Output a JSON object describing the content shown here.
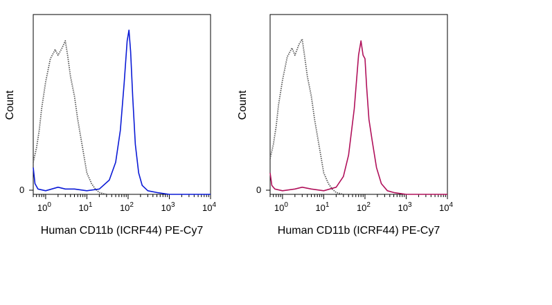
{
  "chart_data": [
    {
      "type": "line",
      "xscale": "log",
      "xlim": [
        0.5,
        10000
      ],
      "ylim": [
        0,
        100
      ],
      "xlabel": "Human CD11b (ICRF44) PE-Cy7",
      "ylabel": "Count",
      "y_tick_labels": [
        "0"
      ],
      "x_ticks": [
        {
          "value": 1,
          "base": "10",
          "exp": "0"
        },
        {
          "value": 10,
          "base": "10",
          "exp": "1"
        },
        {
          "value": 100,
          "base": "10",
          "exp": "2"
        },
        {
          "value": 1000,
          "base": "10",
          "exp": "3"
        },
        {
          "value": 10000,
          "base": "10",
          "exp": "4"
        }
      ],
      "grid": false,
      "series": [
        {
          "style": "dotted",
          "color": "#555555",
          "x": [
            0.5,
            0.6,
            0.7,
            0.8,
            1.0,
            1.3,
            1.7,
            2.0,
            2.5,
            3.0,
            3.4,
            4.0,
            5.0,
            6.0,
            8.0,
            10.0,
            13.0,
            16.0,
            20.0,
            30.0
          ],
          "y": [
            18,
            26,
            36,
            48,
            63,
            76,
            81,
            78,
            82,
            86,
            78,
            66,
            55,
            42,
            25,
            12,
            6,
            3,
            1,
            0
          ]
        },
        {
          "style": "solid",
          "color": "#0a1ad6",
          "x": [
            0.5,
            0.55,
            0.65,
            1.0,
            2.0,
            3.0,
            5.0,
            10.0,
            20.0,
            35.0,
            50.0,
            65.0,
            80.0,
            95.0,
            105.0,
            115.0,
            130.0,
            150.0,
            180.0,
            220.0,
            300.0,
            500.0,
            1000.0,
            10000.0
          ],
          "y": [
            15,
            6,
            3,
            2,
            4,
            3,
            3,
            2,
            3,
            8,
            18,
            36,
            62,
            86,
            92,
            80,
            54,
            28,
            12,
            5,
            2,
            1,
            0,
            0
          ]
        }
      ]
    },
    {
      "type": "line",
      "xscale": "log",
      "xlim": [
        0.5,
        10000
      ],
      "ylim": [
        0,
        100
      ],
      "xlabel": "Human CD11b (ICRF44) PE-Cy7",
      "ylabel": "Count",
      "y_tick_labels": [
        "0"
      ],
      "x_ticks": [
        {
          "value": 1,
          "base": "10",
          "exp": "0"
        },
        {
          "value": 10,
          "base": "10",
          "exp": "1"
        },
        {
          "value": 100,
          "base": "10",
          "exp": "2"
        },
        {
          "value": 1000,
          "base": "10",
          "exp": "3"
        },
        {
          "value": 10000,
          "base": "10",
          "exp": "4"
        }
      ],
      "grid": false,
      "series": [
        {
          "style": "dotted",
          "color": "#555555",
          "x": [
            0.5,
            0.6,
            0.7,
            0.8,
            1.0,
            1.3,
            1.7,
            2.0,
            2.5,
            3.0,
            3.4,
            4.0,
            5.0,
            6.0,
            8.0,
            10.0,
            13.0,
            16.0,
            20.0,
            30.0
          ],
          "y": [
            20,
            28,
            38,
            50,
            64,
            77,
            82,
            78,
            84,
            87,
            78,
            66,
            55,
            42,
            25,
            12,
            6,
            3,
            1,
            0
          ]
        },
        {
          "style": "solid",
          "color": "#b0105a",
          "x": [
            0.5,
            0.55,
            0.65,
            1.0,
            2.0,
            3.0,
            5.0,
            10.0,
            20.0,
            30.0,
            40.0,
            55.0,
            70.0,
            80.0,
            90.0,
            100.0,
            110.0,
            125.0,
            150.0,
            190.0,
            250.0,
            350.0,
            500.0,
            1000.0,
            10000.0
          ],
          "y": [
            12,
            5,
            3,
            2,
            3,
            4,
            3,
            2,
            4,
            10,
            22,
            48,
            78,
            86,
            78,
            76,
            60,
            42,
            30,
            15,
            6,
            2,
            1,
            0,
            0
          ]
        }
      ]
    }
  ]
}
